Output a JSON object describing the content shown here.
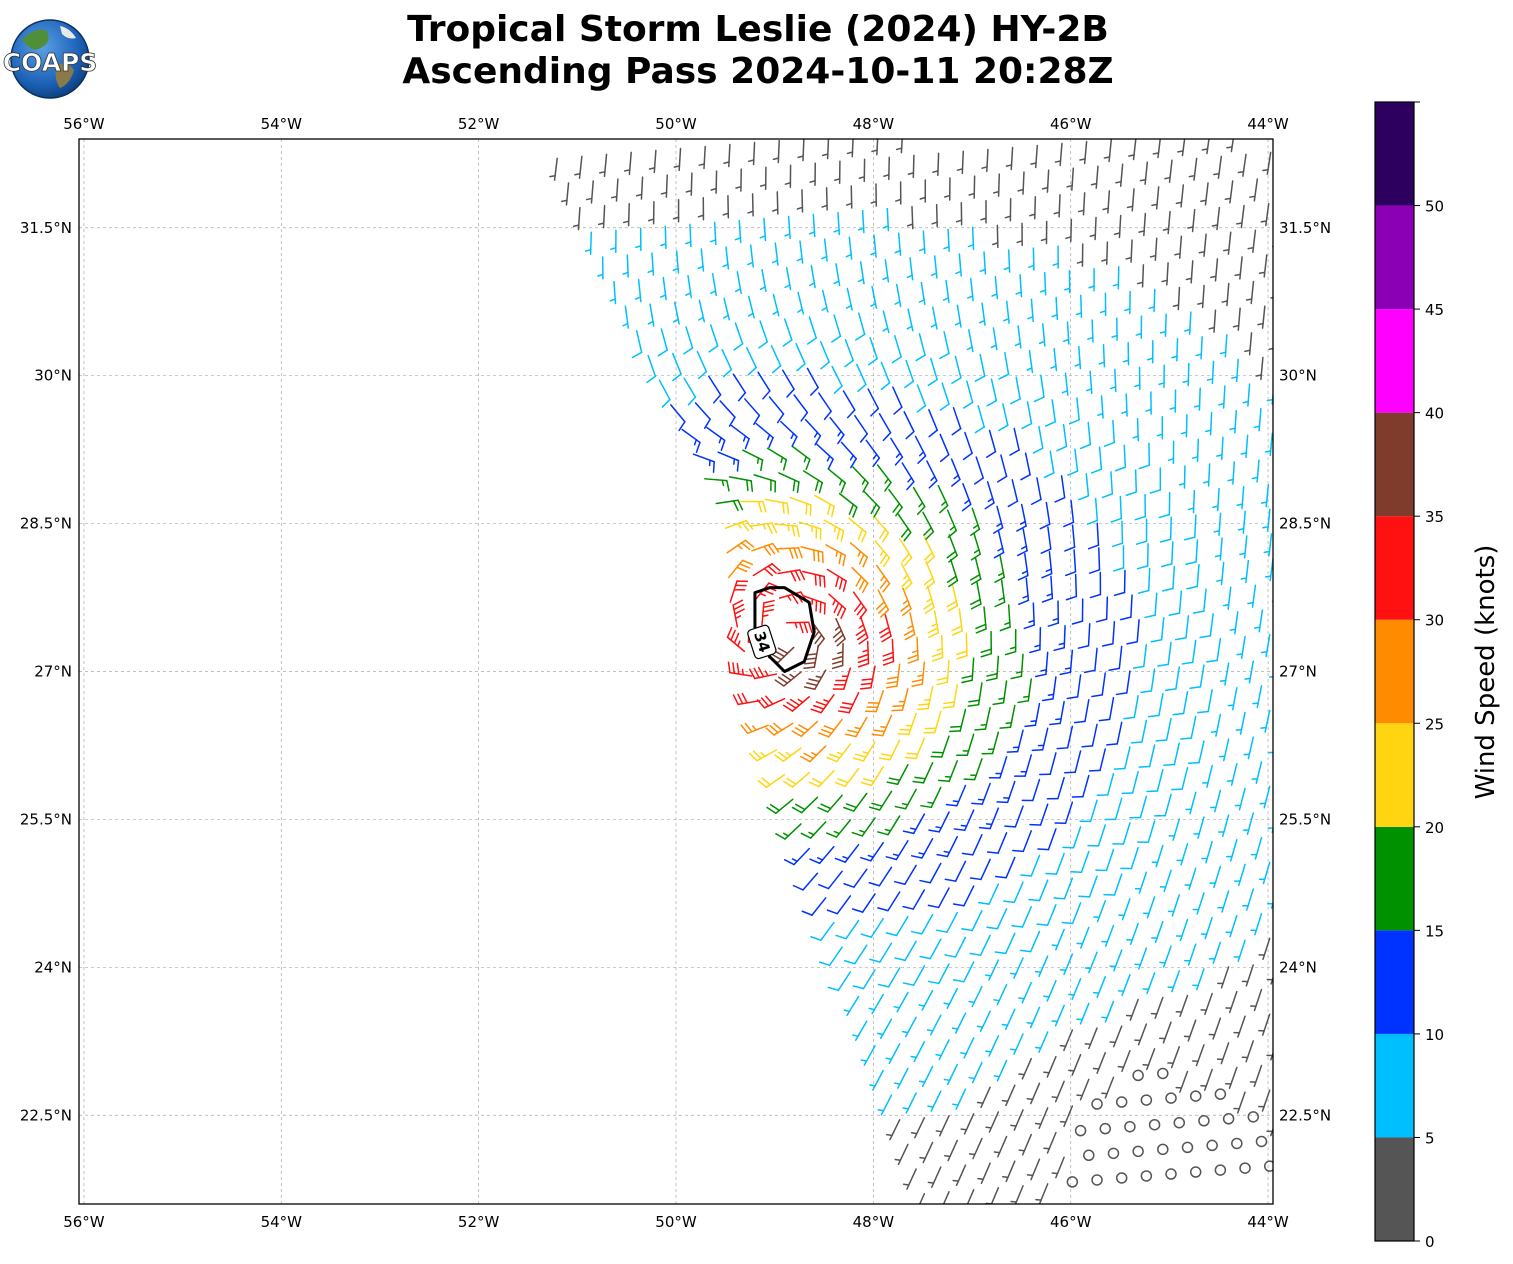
{
  "header": {
    "logo_text": "COAPS",
    "title_line1": "Tropical Storm Leslie (2024) HY-2B",
    "title_line2": "Ascending Pass 2024-10-11 20:28Z"
  },
  "map": {
    "lon_range": [
      -56.05,
      -43.95
    ],
    "lat_range": [
      21.6,
      32.4
    ],
    "lon_ticks": [
      -56,
      -54,
      -52,
      -50,
      -48,
      -46,
      -44
    ],
    "lon_tick_labels": [
      "56°W",
      "54°W",
      "52°W",
      "50°W",
      "48°W",
      "46°W",
      "44°W"
    ],
    "lat_ticks": [
      22.5,
      24,
      25.5,
      27,
      28.5,
      30,
      31.5
    ],
    "lat_tick_labels": [
      "22.5°N",
      "24°N",
      "25.5°N",
      "27°N",
      "28.5°N",
      "30°N",
      "31.5°N"
    ],
    "grid": true,
    "gridline_style": "dashed",
    "center_lon": -48.9,
    "center_lat": 27.4,
    "swath_edge": [
      [
        -51.3,
        32.3
      ],
      [
        -49.55,
        28.5
      ],
      [
        -49.5,
        27.7
      ],
      [
        -49.3,
        27.0
      ],
      [
        -47.5,
        21.6
      ]
    ],
    "contour_label": "34",
    "contour_34kt": [
      [
        -48.9,
        27.85
      ],
      [
        -48.65,
        27.7
      ],
      [
        -48.6,
        27.4
      ],
      [
        -48.7,
        27.1
      ],
      [
        -48.9,
        27.0
      ],
      [
        -49.05,
        27.15
      ],
      [
        -49.2,
        27.45
      ],
      [
        -49.2,
        27.8
      ],
      [
        -49.05,
        27.85
      ]
    ]
  },
  "colorbar": {
    "label": "Wind Speed (knots)",
    "ticks": [
      0,
      5,
      10,
      15,
      20,
      25,
      30,
      35,
      40,
      45,
      50
    ],
    "tick_labels": [
      "0",
      "5",
      "10",
      "15",
      "20",
      "25",
      "30",
      "35",
      "40",
      "45",
      "50"
    ],
    "max": 55,
    "bins": [
      {
        "min": 0,
        "max": 5,
        "color": "#555555"
      },
      {
        "min": 5,
        "max": 10,
        "color": "#00bfff"
      },
      {
        "min": 10,
        "max": 15,
        "color": "#0033ff"
      },
      {
        "min": 15,
        "max": 20,
        "color": "#009100"
      },
      {
        "min": 20,
        "max": 25,
        "color": "#ffd511"
      },
      {
        "min": 25,
        "max": 30,
        "color": "#ff8c00"
      },
      {
        "min": 30,
        "max": 35,
        "color": "#ff1111"
      },
      {
        "min": 35,
        "max": 40,
        "color": "#7f3c2c"
      },
      {
        "min": 40,
        "max": 45,
        "color": "#ff00ff"
      },
      {
        "min": 45,
        "max": 50,
        "color": "#8b00b5"
      },
      {
        "min": 50,
        "max": 55,
        "color": "#2d005f"
      }
    ]
  }
}
